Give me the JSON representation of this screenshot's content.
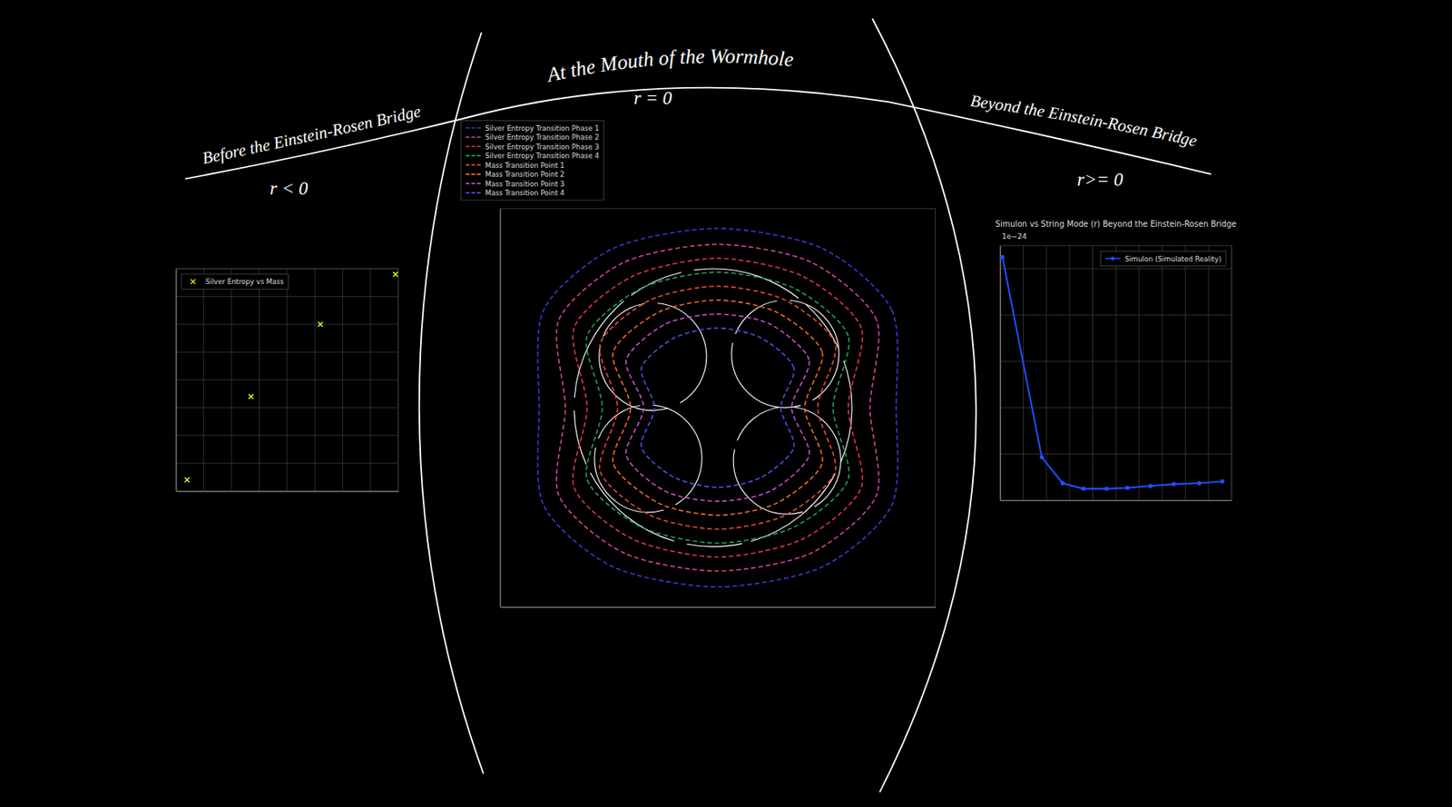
{
  "panels": [
    {
      "title": "Before the Einstein-Rosen Bridge",
      "label": "r < 0"
    },
    {
      "title": "At the Mouth of the Wormhole",
      "label": "r = 0"
    },
    {
      "title": "Beyond the Einstein-Rosen Bridge",
      "label": "r>= 0"
    }
  ],
  "chart_data": [
    {
      "type": "scatter",
      "x": [
        7.9,
        5.2,
        2.7,
        0.4
      ],
      "series": [
        {
          "name": "Silver Entropy vs Mass",
          "color": "#ffff00",
          "marker": "x",
          "values": [
            7.8,
            6.0,
            3.4,
            0.4
          ]
        }
      ],
      "xlim": [
        0,
        8
      ],
      "ylim": [
        0,
        8
      ],
      "xticks": [
        0,
        1,
        2,
        3,
        4,
        5,
        6,
        7,
        8
      ],
      "yticks": [
        0,
        1,
        2,
        3,
        4,
        5,
        6,
        7,
        8
      ],
      "grid": true,
      "tick_labels": false,
      "legend": "upper left"
    },
    {
      "type": "line",
      "series": [
        {
          "name": "Silver Entropy Transition Phase 1",
          "color": "#3a3ad6",
          "line_style": "dashed",
          "x": [
            8.2,
            8.0,
            4.8,
            0,
            -4.8,
            -8.0,
            -8.2,
            -8.0,
            -4.8,
            0,
            4.8,
            8.0
          ],
          "values": [
            0,
            4.9,
            8.0,
            9.0,
            8.0,
            4.9,
            0,
            -4.9,
            -8.0,
            -9.0,
            -8.0,
            -4.9
          ]
        },
        {
          "name": "Silver Entropy Transition Phase 2",
          "color": "#d4449e",
          "line_style": "dashed",
          "x": [
            7.0,
            7.3,
            4.3,
            0,
            -4.3,
            -7.3,
            -7.0,
            -7.3,
            -4.3,
            0,
            4.3,
            7.3
          ],
          "values": [
            0,
            4.4,
            7.3,
            8.2,
            7.3,
            4.4,
            0,
            -4.4,
            -7.3,
            -8.2,
            -7.3,
            -4.4
          ]
        },
        {
          "name": "Silver Entropy Transition Phase 3",
          "color": "#e0364a",
          "line_style": "dashed",
          "x": [
            6.0,
            6.6,
            3.9,
            0,
            -3.9,
            -6.6,
            -6.0,
            -6.6,
            -3.9,
            0,
            3.9,
            6.6
          ],
          "values": [
            0,
            4.0,
            6.6,
            7.5,
            6.6,
            4.0,
            0,
            -4.0,
            -6.6,
            -7.5,
            -6.6,
            -4.0
          ]
        },
        {
          "name": "Silver Entropy Transition Phase 4",
          "color": "#22a05a",
          "line_style": "dashed",
          "x": [
            5.3,
            6.0,
            3.5,
            0,
            -3.5,
            -6.0,
            -5.3,
            -6.0,
            -3.5,
            0,
            3.5,
            6.0
          ],
          "values": [
            0,
            3.6,
            6.0,
            6.8,
            6.0,
            3.6,
            0,
            -3.6,
            -6.0,
            -6.8,
            -6.0,
            -3.6
          ]
        },
        {
          "name": "Mass Transition Point 1",
          "color": "#e8483c",
          "line_style": "dashed",
          "x": [
            4.6,
            5.4,
            3.1,
            0,
            -3.1,
            -5.4,
            -4.6,
            -5.4,
            -3.1,
            0,
            3.1,
            5.4
          ],
          "values": [
            0,
            3.2,
            5.4,
            6.1,
            5.4,
            3.2,
            0,
            -3.2,
            -5.4,
            -6.1,
            -5.4,
            -3.2
          ]
        },
        {
          "name": "Mass Transition Point 2",
          "color": "#f06a2a",
          "line_style": "dashed",
          "x": [
            4.0,
            4.8,
            2.7,
            0,
            -2.7,
            -4.8,
            -4.0,
            -4.8,
            -2.7,
            0,
            2.7,
            4.8
          ],
          "values": [
            0,
            2.8,
            4.8,
            5.4,
            4.8,
            2.8,
            0,
            -2.8,
            -4.8,
            -5.4,
            -4.8,
            -2.8
          ]
        },
        {
          "name": "Mass Transition Point 3",
          "color": "#c850c8",
          "line_style": "dashed",
          "x": [
            3.4,
            4.2,
            2.4,
            0,
            -2.4,
            -4.2,
            -3.4,
            -4.2,
            -2.4,
            0,
            2.4,
            4.2
          ],
          "values": [
            0,
            2.4,
            4.2,
            4.7,
            4.2,
            2.4,
            0,
            -2.4,
            -4.2,
            -4.7,
            -4.2,
            -2.4
          ]
        },
        {
          "name": "Mass Transition Point 4",
          "color": "#5a4ae0",
          "line_style": "dashed",
          "x": [
            2.9,
            3.5,
            2.0,
            0,
            -2.0,
            -3.5,
            -2.9,
            -3.5,
            -2.0,
            0,
            2.0,
            3.5
          ],
          "values": [
            0,
            2.0,
            3.5,
            4.0,
            3.5,
            2.0,
            0,
            -2.0,
            -3.5,
            -4.0,
            -3.5,
            -2.0
          ]
        }
      ],
      "xlim": [
        -10,
        10
      ],
      "ylim": [
        -10,
        10
      ],
      "grid": false,
      "tick_labels": false,
      "legend": "upper left"
    },
    {
      "type": "line",
      "title": "Simulon vs String Mode (r) Beyond the Einstein-Rosen Bridge",
      "annotations": [
        "1e−24"
      ],
      "x": [
        0.1,
        1.8,
        2.7,
        3.6,
        4.6,
        5.5,
        6.5,
        7.5,
        8.6,
        9.6
      ],
      "series": [
        {
          "name": "Simulon (Simulated Reality)",
          "color": "#1f4fff",
          "marker": "o",
          "values": [
            5.25,
            0.93,
            0.37,
            0.25,
            0.25,
            0.27,
            0.31,
            0.35,
            0.37,
            0.41
          ]
        }
      ],
      "xlim": [
        0,
        10
      ],
      "ylim": [
        0,
        5.5
      ],
      "xticks": [
        0,
        1,
        2,
        3,
        4,
        5,
        6,
        7,
        8,
        9,
        10
      ],
      "yticks": [
        0,
        1,
        2,
        3,
        4,
        5
      ],
      "grid": true,
      "tick_labels": false,
      "legend": "upper right"
    }
  ]
}
